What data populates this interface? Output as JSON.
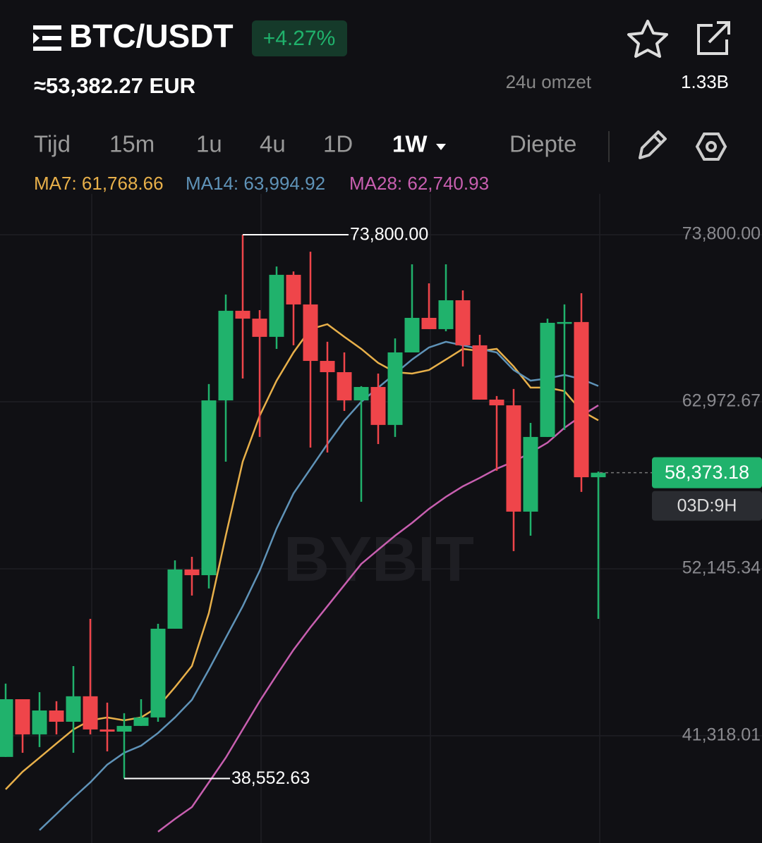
{
  "header": {
    "pair": "BTC/USDT",
    "change": "+4.27%",
    "price_eur": "≈53,382.27 EUR",
    "turnover_label": "24u omzet",
    "turnover_value": "1.33B",
    "tabs": [
      "Tijd",
      "15m",
      "1u",
      "4u",
      "1D",
      "1W",
      "Diepte"
    ]
  },
  "chart_data": {
    "type": "candlestick",
    "watermark": "BYBIT",
    "up_color": "#20b26c",
    "down_color": "#ef454a",
    "ylim": [
      34370,
      76450
    ],
    "yticks": [
      {
        "value": 73800,
        "label": "73,800.00"
      },
      {
        "value": 62972.67,
        "label": "62,972.67"
      },
      {
        "value": 52145.34,
        "label": "52,145.34"
      },
      {
        "value": 41318.01,
        "label": "41,318.01"
      }
    ],
    "grid": true,
    "candles": [
      {
        "open": 39950,
        "high": 44700,
        "low": 39950,
        "close": 43690
      },
      {
        "open": 43690,
        "high": 43690,
        "low": 40220,
        "close": 41410
      },
      {
        "open": 41410,
        "high": 44150,
        "low": 40590,
        "close": 42960
      },
      {
        "open": 42960,
        "high": 43560,
        "low": 41410,
        "close": 42230
      },
      {
        "open": 42230,
        "high": 45840,
        "low": 40220,
        "close": 43880
      },
      {
        "open": 43880,
        "high": 48900,
        "low": 41410,
        "close": 41730
      },
      {
        "open": 41730,
        "high": 43470,
        "low": 40310,
        "close": 41590
      },
      {
        "open": 41590,
        "high": 42780,
        "low": 38552.63,
        "close": 41960
      },
      {
        "open": 41960,
        "high": 43690,
        "low": 41960,
        "close": 42510
      },
      {
        "open": 42510,
        "high": 48580,
        "low": 42230,
        "close": 48260
      },
      {
        "open": 48260,
        "high": 52690,
        "low": 48260,
        "close": 52100
      },
      {
        "open": 52100,
        "high": 52920,
        "low": 50410,
        "close": 51730
      },
      {
        "open": 51730,
        "high": 64120,
        "low": 50870,
        "close": 63060
      },
      {
        "open": 63060,
        "high": 69920,
        "low": 59090,
        "close": 68870
      },
      {
        "open": 68870,
        "high": 73800,
        "low": 64480,
        "close": 68360
      },
      {
        "open": 68360,
        "high": 68910,
        "low": 60690,
        "close": 67180
      },
      {
        "open": 67180,
        "high": 71740,
        "low": 66400,
        "close": 71200
      },
      {
        "open": 71200,
        "high": 71420,
        "low": 66630,
        "close": 69280
      },
      {
        "open": 69280,
        "high": 72700,
        "low": 60000,
        "close": 65620
      },
      {
        "open": 65620,
        "high": 66860,
        "low": 59680,
        "close": 64890
      },
      {
        "open": 64890,
        "high": 66170,
        "low": 62380,
        "close": 63060
      },
      {
        "open": 63060,
        "high": 63980,
        "low": 56490,
        "close": 63930
      },
      {
        "open": 63930,
        "high": 64800,
        "low": 60230,
        "close": 61470
      },
      {
        "open": 61470,
        "high": 67080,
        "low": 60690,
        "close": 66170
      },
      {
        "open": 66170,
        "high": 71880,
        "low": 66170,
        "close": 68410
      },
      {
        "open": 68410,
        "high": 70650,
        "low": 67680,
        "close": 67680
      },
      {
        "open": 67680,
        "high": 71880,
        "low": 67540,
        "close": 69550
      },
      {
        "open": 69550,
        "high": 70190,
        "low": 65260,
        "close": 66630
      },
      {
        "open": 66630,
        "high": 67310,
        "low": 63110,
        "close": 63110
      },
      {
        "open": 63110,
        "high": 63340,
        "low": 58500,
        "close": 62740
      },
      {
        "open": 62740,
        "high": 63800,
        "low": 53290,
        "close": 55850
      },
      {
        "open": 55850,
        "high": 61600,
        "low": 54290,
        "close": 60690
      },
      {
        "open": 60690,
        "high": 68360,
        "low": 60690,
        "close": 68090
      },
      {
        "open": 68090,
        "high": 69280,
        "low": 61150,
        "close": 68140
      },
      {
        "open": 68140,
        "high": 70010,
        "low": 57130,
        "close": 58080
      },
      {
        "open": 58080,
        "high": 58450,
        "low": 48900,
        "close": 58373.18
      }
    ],
    "series": [
      {
        "name": "MA7",
        "legend": "MA7: 61,768.66",
        "color": "#e8b04a",
        "values": [
          37850,
          38990,
          39900,
          40820,
          41730,
          42320,
          42510,
          42320,
          42510,
          43190,
          44470,
          45840,
          49270,
          54290,
          59090,
          62060,
          64340,
          66170,
          67680,
          68000,
          67180,
          66400,
          65490,
          64890,
          64800,
          65030,
          65710,
          66400,
          66260,
          66400,
          65260,
          63890,
          63890,
          63660,
          62380,
          61768.66
        ]
      },
      {
        "name": "MA14",
        "legend": "MA14: 63,994.92",
        "color": "#5f93b8",
        "values": [
          null,
          null,
          35200,
          36250,
          37300,
          38300,
          39450,
          40220,
          40680,
          41500,
          42510,
          43650,
          45610,
          47670,
          49720,
          52010,
          54750,
          57030,
          58630,
          60230,
          61740,
          62970,
          63890,
          64800,
          65710,
          66490,
          66860,
          66630,
          66400,
          66170,
          65030,
          64340,
          64480,
          64710,
          64440,
          63994.92
        ]
      },
      {
        "name": "MA28",
        "legend": "MA28: 62,740.93",
        "color": "#c85fb0",
        "values": [
          null,
          null,
          null,
          null,
          null,
          null,
          null,
          null,
          null,
          35100,
          35930,
          36700,
          38300,
          39900,
          41730,
          43560,
          45250,
          46890,
          48350,
          49720,
          51090,
          52460,
          53380,
          54290,
          55120,
          56030,
          56810,
          57490,
          58040,
          58630,
          59090,
          59680,
          60320,
          61280,
          62060,
          62740.93
        ]
      }
    ],
    "annotations": [
      {
        "value": 73800,
        "label": "73,800.00",
        "at": "high"
      },
      {
        "value": 38552.63,
        "label": "38,552.63",
        "at": "low"
      }
    ],
    "price_tag": {
      "value": 58373.18,
      "label": "58,373.18",
      "countdown": "03D:9H"
    }
  }
}
